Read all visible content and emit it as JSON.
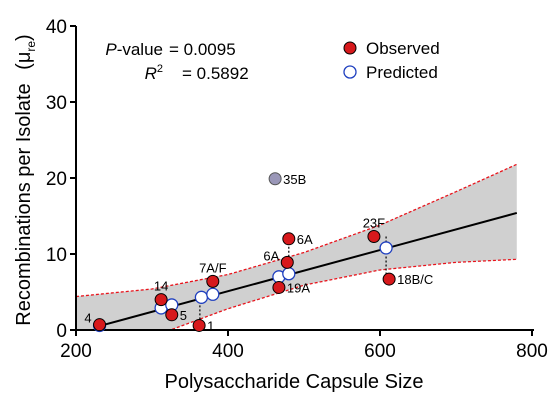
{
  "chart_data": {
    "type": "scatter",
    "xlabel": "Polysaccharide Capsule Size",
    "ylabel": "Recombinations per Isolate",
    "ylabel_unit": "(μ",
    "ylabel_unit_sub": "re",
    "ylabel_unit_close": ")",
    "xlim": [
      200,
      800
    ],
    "ylim": [
      0,
      40
    ],
    "xticks": [
      "200",
      "400",
      "600",
      "800"
    ],
    "yticks": [
      "0",
      "10",
      "20",
      "30",
      "40"
    ],
    "stats": {
      "pvalue_label_italic": "P",
      "pvalue_label_rest": "-value",
      "pvalue_eq": "= 0.0095",
      "r2_label_italic": "R",
      "r2_label_sup": "2",
      "r2_eq": "= 0.5892"
    },
    "legend": [
      {
        "label": "Observed",
        "fill": "#d7191c",
        "stroke": "#000000"
      },
      {
        "label": "Predicted",
        "fill": "#ffffff",
        "stroke": "#1f3fbf"
      }
    ],
    "legend_placement": "top-right",
    "regression_line": {
      "x": [
        230,
        780
      ],
      "y": [
        0.5,
        15.4
      ],
      "color": "#000000"
    },
    "confidence_band": {
      "upper": [
        [
          200,
          4.4
        ],
        [
          300,
          5.4
        ],
        [
          400,
          7.3
        ],
        [
          500,
          10.2
        ],
        [
          600,
          13.8
        ],
        [
          700,
          18.2
        ],
        [
          780,
          21.8
        ]
      ],
      "lower": [
        [
          200,
          -3.5
        ],
        [
          300,
          -0.9
        ],
        [
          400,
          2.8
        ],
        [
          500,
          5.9
        ],
        [
          600,
          7.9
        ],
        [
          700,
          8.9
        ],
        [
          780,
          9.3
        ]
      ],
      "fill": "#d0d0d0",
      "edge_color": "#e8141c"
    },
    "observed_points": [
      {
        "label": "4",
        "x": 231,
        "y": 0.7,
        "label_pos": "left"
      },
      {
        "label": "14",
        "x": 312,
        "y": 4.0,
        "label_pos": "above"
      },
      {
        "label": "5",
        "x": 326,
        "y": 2.0,
        "label_pos": "right"
      },
      {
        "label": "1",
        "x": 362,
        "y": 0.6,
        "label_pos": "right"
      },
      {
        "label": "7A/F",
        "x": 380,
        "y": 6.4,
        "label_pos": "above"
      },
      {
        "label": "6A",
        "x": 478,
        "y": 8.9,
        "label_pos": "left"
      },
      {
        "label": "6A",
        "x": 480,
        "y": 12.0,
        "label_pos": "right"
      },
      {
        "label": "19A",
        "x": 467,
        "y": 5.6,
        "label_pos": "right"
      },
      {
        "label": "23F",
        "x": 592,
        "y": 12.3,
        "label_pos": "above"
      },
      {
        "label": "18B/C",
        "x": 612,
        "y": 6.7,
        "label_pos": "right"
      }
    ],
    "outlier_point": {
      "label": "35B",
      "x": 462,
      "y": 19.9,
      "fill": "#9a97b8",
      "stroke": "#555555"
    },
    "predicted_points": [
      {
        "x": 231,
        "y": 0.6
      },
      {
        "x": 312,
        "y": 2.9
      },
      {
        "x": 326,
        "y": 3.3
      },
      {
        "x": 365,
        "y": 4.3
      },
      {
        "x": 380,
        "y": 4.7
      },
      {
        "x": 467,
        "y": 7.0
      },
      {
        "x": 480,
        "y": 7.4
      },
      {
        "x": 608,
        "y": 10.8
      }
    ],
    "residual_links": [
      {
        "x": 480,
        "y1": 12.0,
        "y2": 7.4
      },
      {
        "x": 608,
        "y1": 12.3,
        "y2": 6.7
      },
      {
        "x": 363,
        "y1": 4.3,
        "y2": 0.6
      },
      {
        "x": 467,
        "y1": 7.0,
        "y2": 5.6
      }
    ]
  }
}
